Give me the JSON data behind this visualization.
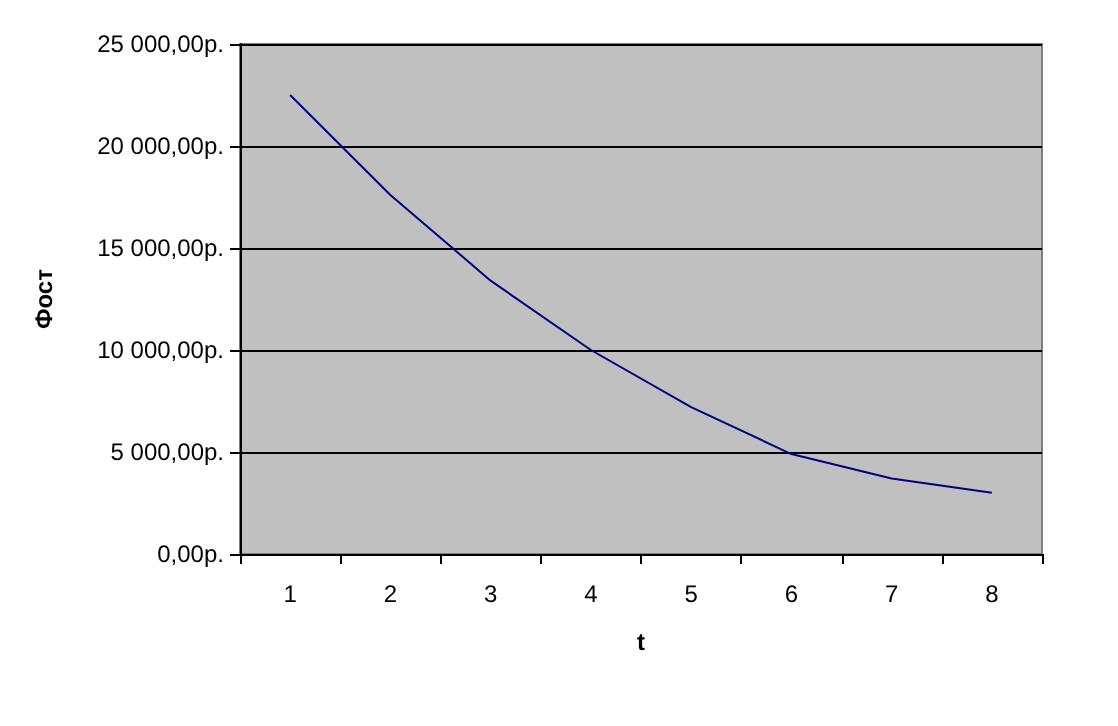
{
  "chart_data": {
    "type": "line",
    "xlabel": "t",
    "ylabel": "Фост",
    "categories": [
      "1",
      "2",
      "3",
      "4",
      "5",
      "6",
      "7",
      "8"
    ],
    "series": [
      {
        "color": "#000080",
        "values": [
          22500,
          17600,
          13400,
          10000,
          7200,
          4900,
          3700,
          3000
        ]
      }
    ],
    "ylim": [
      0,
      25000
    ],
    "yticks": [
      {
        "value": 0,
        "label": "0,00р."
      },
      {
        "value": 5000,
        "label": "5 000,00р."
      },
      {
        "value": 10000,
        "label": "10 000,00р."
      },
      {
        "value": 15000,
        "label": "15 000,00р."
      },
      {
        "value": 20000,
        "label": "20 000,00р."
      },
      {
        "value": 25000,
        "label": "25 000,00р."
      }
    ],
    "grid": "y",
    "marker": "none",
    "line_style": "solid"
  }
}
